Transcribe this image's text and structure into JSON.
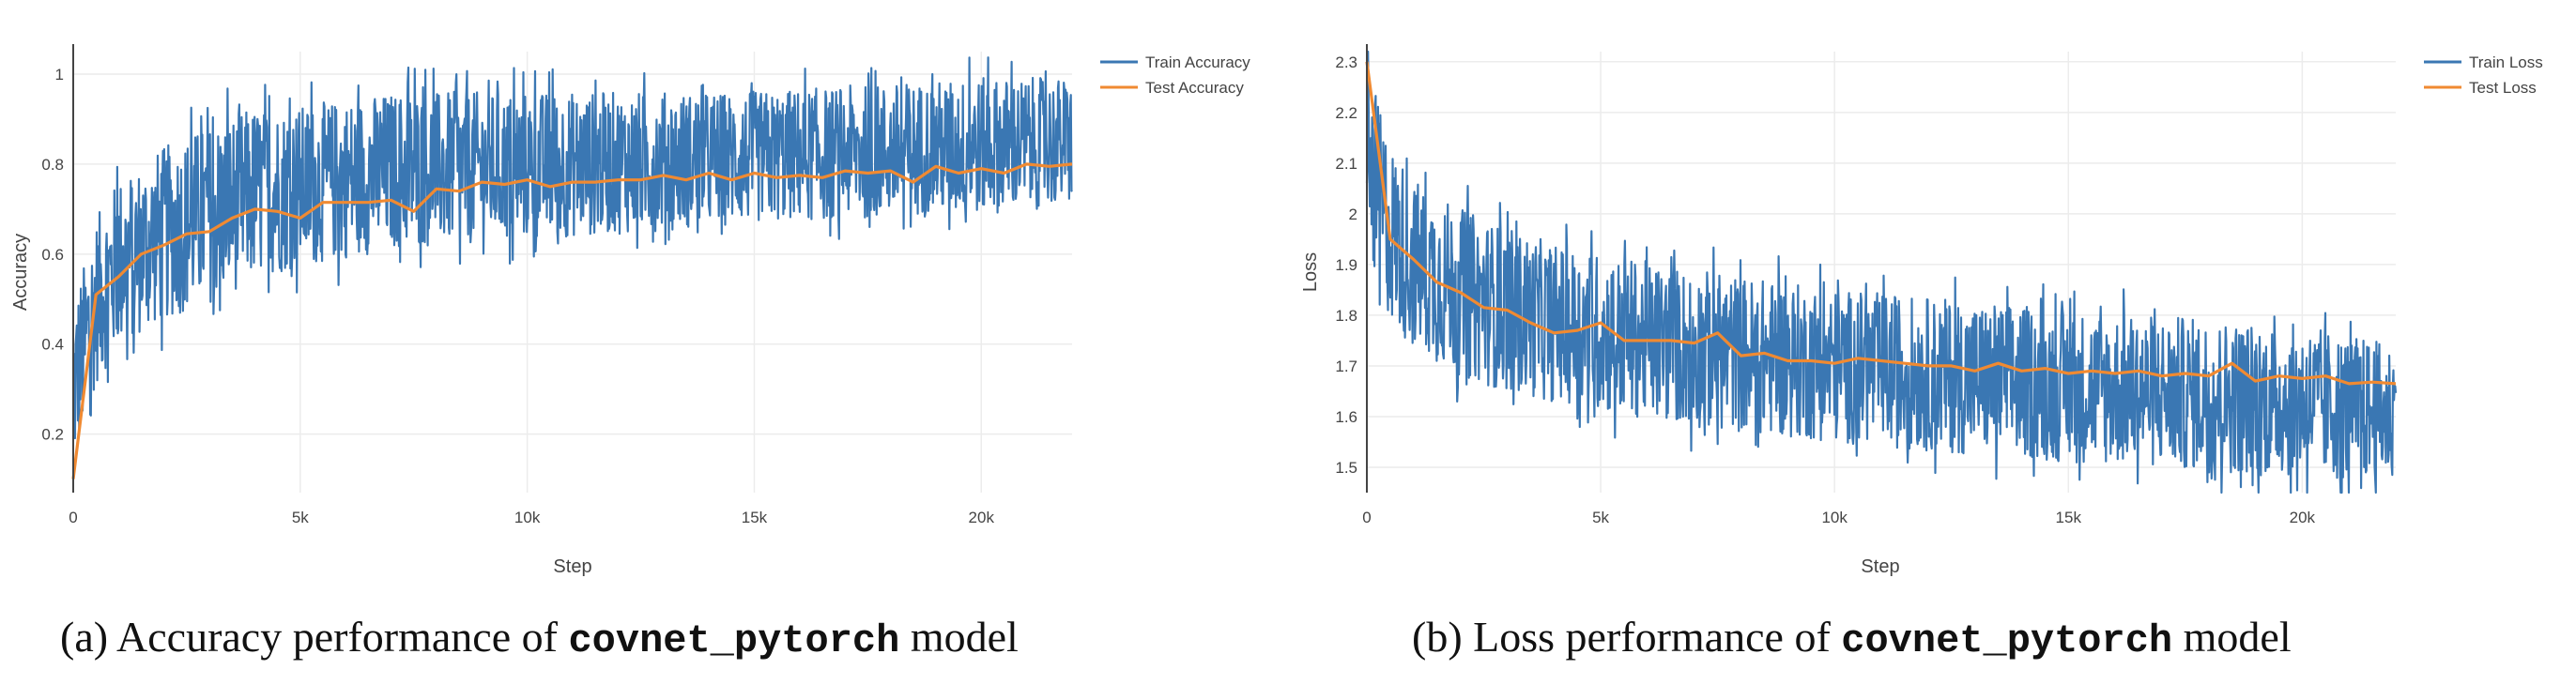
{
  "captions": {
    "a": {
      "label": "(a) Accuracy performance of",
      "code": "covnet_pytorch",
      "suffix": "model"
    },
    "b": {
      "label": "(b) Loss performance of",
      "code": "covnet_pytorch",
      "suffix": "model"
    }
  },
  "colors": {
    "train": "#3a77b3",
    "test": "#f08a32",
    "grid": "#ececec",
    "axis": "#444444"
  },
  "chart_data": [
    {
      "id": "accuracy",
      "type": "line",
      "xlabel": "Step",
      "ylabel": "Accuracy",
      "xlim": [
        0,
        22000
      ],
      "ylim": [
        0.07,
        1.05
      ],
      "xticks": [
        0,
        5000,
        10000,
        15000,
        20000
      ],
      "xtick_labels": [
        "0",
        "5k",
        "10k",
        "15k",
        "20k"
      ],
      "yticks": [
        0.2,
        0.4,
        0.6,
        0.8,
        1
      ],
      "ytick_labels": [
        "0.2",
        "0.4",
        "0.6",
        "0.8",
        "1"
      ],
      "legend": "top-right",
      "grid": true,
      "series": [
        {
          "name": "Train Accuracy",
          "kind": "noisy_band",
          "note_x": [
            0,
            500,
            1000,
            2000,
            3000,
            4000,
            5000,
            7000,
            10000,
            15000,
            20000,
            22000
          ],
          "upper": [
            0.5,
            0.69,
            0.78,
            0.85,
            0.9,
            0.94,
            0.94,
            0.97,
            0.97,
            0.97,
            1.0,
            1.0
          ],
          "lower": [
            0.1,
            0.3,
            0.38,
            0.44,
            0.48,
            0.53,
            0.56,
            0.6,
            0.62,
            0.66,
            0.68,
            0.7
          ]
        },
        {
          "name": "Test Accuracy",
          "x": [
            0,
            500,
            1000,
            1500,
            2000,
            2500,
            3000,
            3500,
            4000,
            4500,
            5000,
            5500,
            6000,
            6500,
            7000,
            7500,
            8000,
            8500,
            9000,
            9500,
            10000,
            10500,
            11000,
            11500,
            12000,
            12500,
            13000,
            13500,
            14000,
            14500,
            15000,
            15500,
            16000,
            16500,
            17000,
            17500,
            18000,
            18500,
            19000,
            19500,
            20000,
            20500,
            21000,
            21500,
            22000
          ],
          "y": [
            0.1,
            0.51,
            0.55,
            0.6,
            0.62,
            0.645,
            0.65,
            0.68,
            0.7,
            0.695,
            0.68,
            0.715,
            0.715,
            0.715,
            0.72,
            0.695,
            0.745,
            0.74,
            0.76,
            0.755,
            0.765,
            0.75,
            0.76,
            0.76,
            0.765,
            0.765,
            0.775,
            0.765,
            0.78,
            0.765,
            0.78,
            0.77,
            0.775,
            0.77,
            0.785,
            0.78,
            0.785,
            0.76,
            0.795,
            0.78,
            0.79,
            0.78,
            0.8,
            0.795,
            0.8
          ]
        }
      ]
    },
    {
      "id": "loss",
      "type": "line",
      "xlabel": "Step",
      "ylabel": "Loss",
      "xlim": [
        0,
        22000
      ],
      "ylim": [
        1.45,
        2.32
      ],
      "xticks": [
        0,
        5000,
        10000,
        15000,
        20000
      ],
      "xtick_labels": [
        "0",
        "5k",
        "10k",
        "15k",
        "20k"
      ],
      "yticks": [
        1.5,
        1.6,
        1.7,
        1.8,
        1.9,
        2,
        2.1,
        2.2,
        2.3
      ],
      "ytick_labels": [
        "1.5",
        "1.6",
        "1.7",
        "1.8",
        "1.9",
        "2",
        "2.1",
        "2.2",
        "2.3"
      ],
      "legend": "top-right",
      "grid": true,
      "series": [
        {
          "name": "Train Loss",
          "kind": "noisy_band",
          "note_x": [
            0,
            500,
            1000,
            2000,
            3000,
            4000,
            5000,
            7000,
            10000,
            15000,
            20000,
            22000
          ],
          "upper": [
            2.3,
            2.15,
            2.08,
            2.02,
            1.98,
            1.95,
            1.93,
            1.9,
            1.86,
            1.82,
            1.79,
            1.75
          ],
          "lower": [
            1.9,
            1.78,
            1.72,
            1.67,
            1.64,
            1.62,
            1.6,
            1.57,
            1.54,
            1.5,
            1.47,
            1.46
          ]
        },
        {
          "name": "Test Loss",
          "x": [
            0,
            500,
            1000,
            1500,
            2000,
            2500,
            3000,
            3500,
            4000,
            4500,
            5000,
            5500,
            6000,
            6500,
            7000,
            7500,
            8000,
            8500,
            9000,
            9500,
            10000,
            10500,
            11000,
            11500,
            12000,
            12500,
            13000,
            13500,
            14000,
            14500,
            15000,
            15500,
            16000,
            16500,
            17000,
            17500,
            18000,
            18500,
            19000,
            19500,
            20000,
            20500,
            21000,
            21500,
            22000
          ],
          "y": [
            2.3,
            1.95,
            1.91,
            1.865,
            1.845,
            1.815,
            1.81,
            1.785,
            1.765,
            1.77,
            1.785,
            1.75,
            1.75,
            1.75,
            1.745,
            1.765,
            1.72,
            1.725,
            1.71,
            1.71,
            1.705,
            1.715,
            1.71,
            1.705,
            1.7,
            1.7,
            1.69,
            1.705,
            1.69,
            1.695,
            1.685,
            1.69,
            1.685,
            1.69,
            1.68,
            1.685,
            1.68,
            1.705,
            1.67,
            1.68,
            1.675,
            1.68,
            1.665,
            1.668,
            1.665
          ]
        }
      ]
    }
  ]
}
